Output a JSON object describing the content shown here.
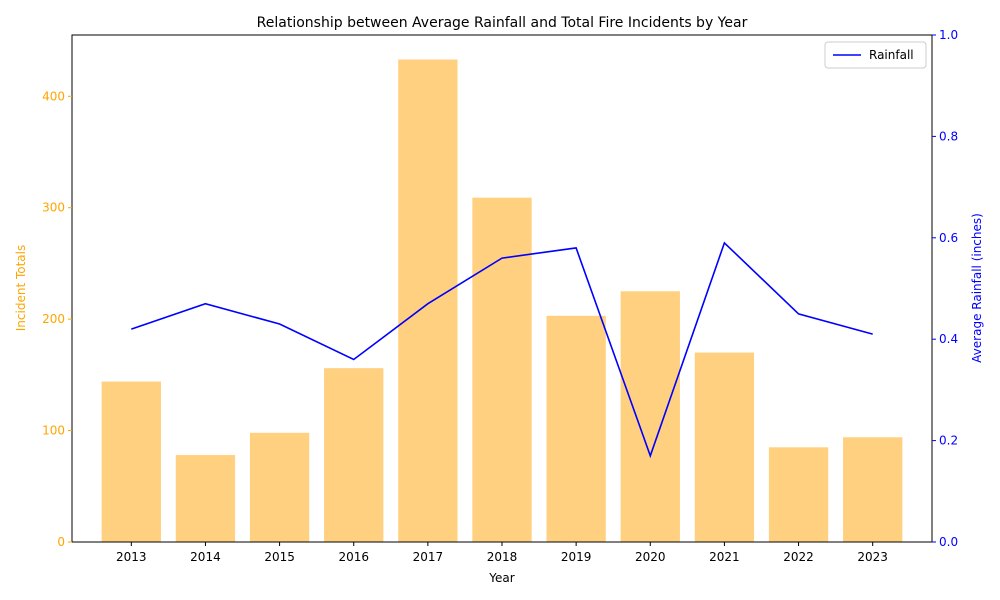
{
  "chart_data": {
    "type": "bar",
    "title": "Relationship between Average Rainfall and Total Fire Incidents by Year",
    "xlabel": "Year",
    "categories": [
      "2013",
      "2014",
      "2015",
      "2016",
      "2017",
      "2018",
      "2019",
      "2020",
      "2021",
      "2022",
      "2023"
    ],
    "y_left": {
      "label": "Incident Totals",
      "range": [
        0,
        455
      ],
      "ticks": [
        0,
        100,
        200,
        300,
        400
      ],
      "color": "#FFA500"
    },
    "y_right": {
      "label": "Average Rainfall (inches)",
      "range": [
        0,
        1.0
      ],
      "ticks": [
        "0.0",
        "0.2",
        "0.4",
        "0.6",
        "0.8",
        "1.0"
      ],
      "color": "#0000FF"
    },
    "series": [
      {
        "type": "bar",
        "axis": "left",
        "color": "#FFD080",
        "values": [
          144,
          78,
          98,
          156,
          433,
          309,
          203,
          225,
          170,
          85,
          94
        ]
      },
      {
        "name": "Rainfall",
        "type": "line",
        "axis": "right",
        "color": "#0000FF",
        "values": [
          0.42,
          0.47,
          0.43,
          0.36,
          0.47,
          0.56,
          0.58,
          0.17,
          0.59,
          0.45,
          0.41
        ]
      }
    ],
    "legend": {
      "position": "top-right",
      "entries": [
        "Rainfall"
      ]
    },
    "grid": false
  }
}
